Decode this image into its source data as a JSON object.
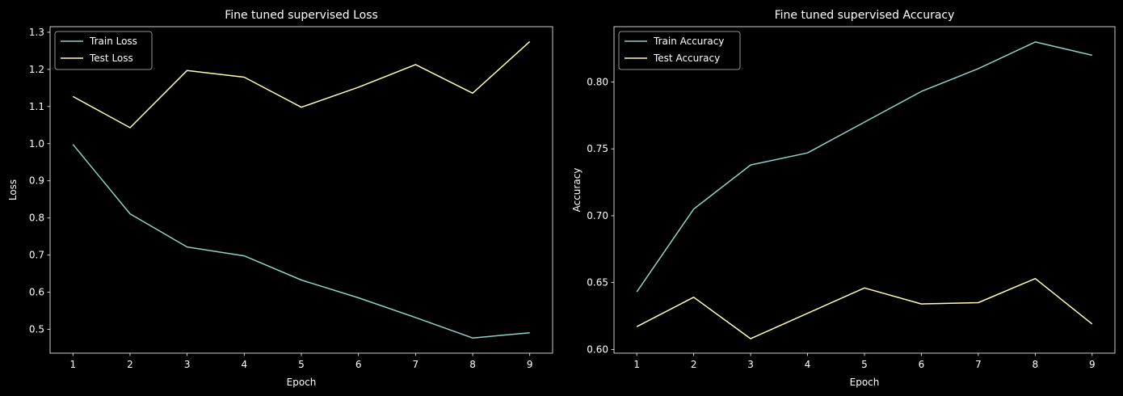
{
  "chart_data": [
    {
      "type": "line",
      "title": "Fine tuned supervised Loss",
      "xlabel": "Epoch",
      "ylabel": "Loss",
      "x": [
        1,
        2,
        3,
        4,
        5,
        6,
        7,
        8,
        9
      ],
      "xlim": [
        0.6,
        9.4
      ],
      "ylim": [
        0.436,
        1.315
      ],
      "xticks": [
        1,
        2,
        3,
        4,
        5,
        6,
        7,
        8,
        9
      ],
      "yticks": [
        0.5,
        0.6,
        0.7,
        0.8,
        0.9,
        1.0,
        1.1,
        1.2,
        1.3
      ],
      "ytick_labels": [
        "0.5",
        "0.6",
        "0.7",
        "0.8",
        "0.9",
        "1.0",
        "1.1",
        "1.2",
        "1.3"
      ],
      "grid": false,
      "legend_position": "top-left",
      "series": [
        {
          "name": "Train Loss",
          "color": "#8dd3c7",
          "values": [
            0.998,
            0.811,
            0.722,
            0.698,
            0.633,
            0.585,
            0.532,
            0.477,
            0.491
          ]
        },
        {
          "name": "Test Loss",
          "color": "#ffffb3",
          "values": [
            1.127,
            1.043,
            1.197,
            1.179,
            1.098,
            1.152,
            1.213,
            1.136,
            1.275
          ]
        }
      ]
    },
    {
      "type": "line",
      "title": "Fine tuned supervised Accuracy",
      "xlabel": "Epoch",
      "ylabel": "Accuracy",
      "x": [
        1,
        2,
        3,
        4,
        5,
        6,
        7,
        8,
        9
      ],
      "xlim": [
        0.6,
        9.4
      ],
      "ylim": [
        0.5972,
        0.8414
      ],
      "xticks": [
        1,
        2,
        3,
        4,
        5,
        6,
        7,
        8,
        9
      ],
      "yticks": [
        0.6,
        0.65,
        0.7,
        0.75,
        0.8
      ],
      "ytick_labels": [
        "0.60",
        "0.65",
        "0.70",
        "0.75",
        "0.80"
      ],
      "grid": false,
      "legend_position": "top-left",
      "series": [
        {
          "name": "Train Accuracy",
          "color": "#8dd3c7",
          "values": [
            0.643,
            0.705,
            0.738,
            0.747,
            0.77,
            0.793,
            0.81,
            0.83,
            0.82
          ]
        },
        {
          "name": "Test Accuracy",
          "color": "#ffffb3",
          "values": [
            0.617,
            0.639,
            0.608,
            0.627,
            0.646,
            0.634,
            0.635,
            0.653,
            0.619
          ]
        }
      ]
    }
  ]
}
